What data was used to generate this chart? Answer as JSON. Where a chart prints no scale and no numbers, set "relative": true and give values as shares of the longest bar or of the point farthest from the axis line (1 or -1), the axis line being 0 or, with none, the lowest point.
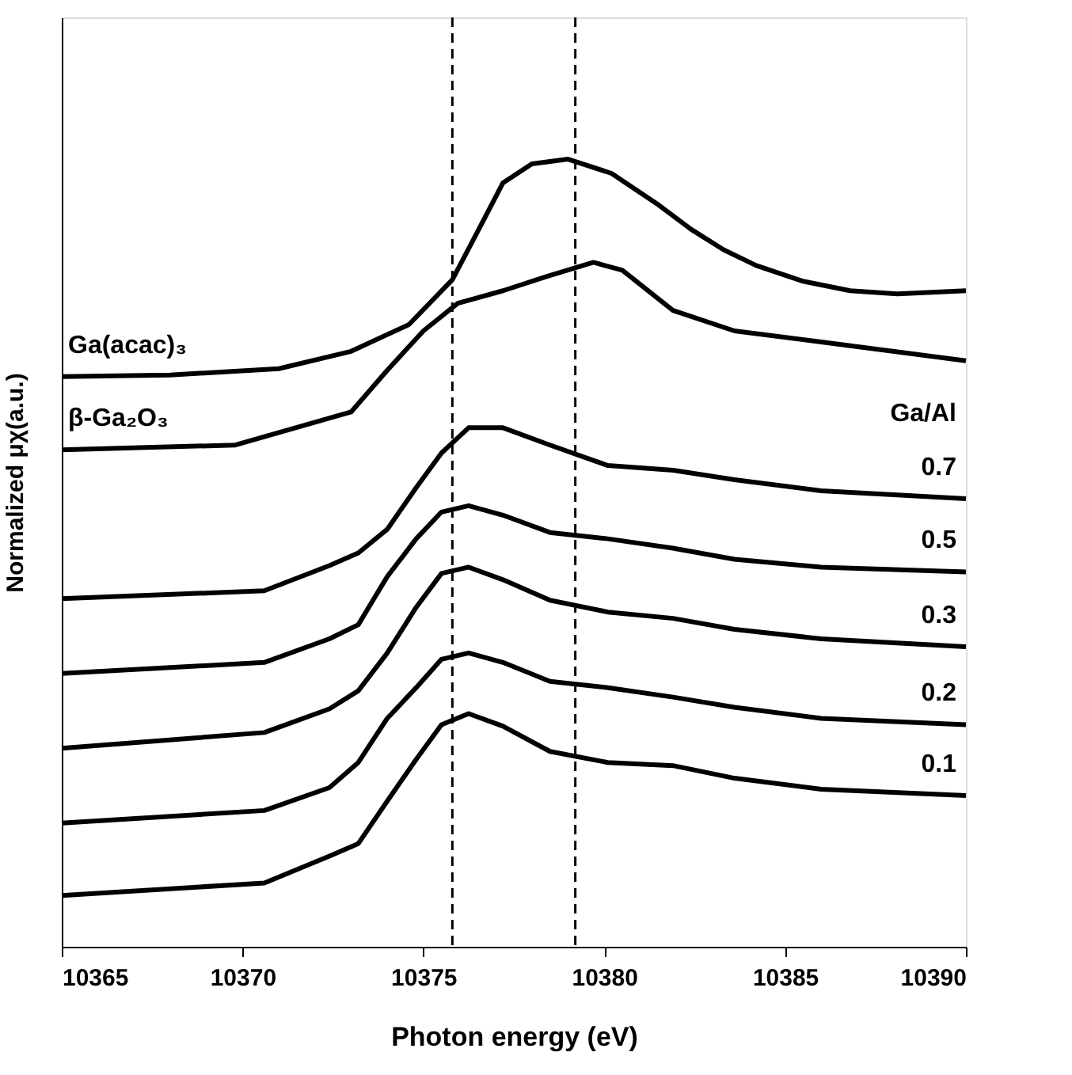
{
  "chart_data": {
    "type": "line",
    "relative": true,
    "xlabel": "Photon energy (eV)",
    "ylabel": "Normalized  μχ(a.u.)",
    "xlim": [
      10365,
      10390
    ],
    "xticks": [
      10365,
      10370,
      10375,
      10380,
      10385,
      10390
    ],
    "grid": false,
    "legend": false,
    "marker": "none",
    "line_style": "solid",
    "tick_labels": "x",
    "annotations": [
      "Ga/Al"
    ],
    "ref_lines": [
      {
        "axis": "x",
        "value": 10375.8,
        "color": "#000000",
        "line_style": "dashed"
      },
      {
        "axis": "x",
        "value": 10379.2,
        "color": "#000000",
        "line_style": "dashed"
      }
    ],
    "series": [
      {
        "name": "Ga(acac)₃",
        "color": "#000000",
        "x": [
          10365,
          10368,
          10371,
          10373,
          10374.6,
          10375.8,
          10376.6,
          10377.2,
          10378,
          10379,
          10380.2,
          10381.5,
          10382.4,
          10383.3,
          10384.2,
          10385.5,
          10386.8,
          10388.1,
          10390
        ],
        "values": [
          0.724,
          0.726,
          0.734,
          0.756,
          0.79,
          0.847,
          0.917,
          0.97,
          0.994,
          1.0,
          0.982,
          0.942,
          0.911,
          0.885,
          0.865,
          0.845,
          0.833,
          0.829,
          0.833
        ]
      },
      {
        "name": "β-Ga₂O₃",
        "color": "#000000",
        "x": [
          10365,
          10369.8,
          10373,
          10374,
          10375,
          10375.95,
          10377.2,
          10378.4,
          10379.7,
          10380.5,
          10381.9,
          10383.6,
          10386,
          10390
        ],
        "values": [
          0.631,
          0.637,
          0.679,
          0.732,
          0.782,
          0.817,
          0.833,
          0.851,
          0.869,
          0.859,
          0.808,
          0.782,
          0.768,
          0.744
        ]
      },
      {
        "name": "0.7",
        "color": "#000000",
        "x": [
          10365,
          10370.6,
          10372.4,
          10373.2,
          10374,
          10374.8,
          10375.5,
          10376.25,
          10377.2,
          10378.5,
          10380.1,
          10381.9,
          10383.6,
          10386,
          10390
        ],
        "values": [
          0.442,
          0.452,
          0.484,
          0.5,
          0.53,
          0.583,
          0.627,
          0.659,
          0.659,
          0.637,
          0.611,
          0.605,
          0.593,
          0.579,
          0.569
        ]
      },
      {
        "name": "0.5",
        "color": "#000000",
        "x": [
          10365,
          10370.6,
          10372.4,
          10373.2,
          10374,
          10374.8,
          10375.5,
          10376.25,
          10377.2,
          10378.5,
          10380.1,
          10381.9,
          10383.6,
          10386,
          10390
        ],
        "values": [
          0.347,
          0.361,
          0.391,
          0.409,
          0.47,
          0.518,
          0.552,
          0.56,
          0.548,
          0.526,
          0.518,
          0.506,
          0.492,
          0.482,
          0.476
        ]
      },
      {
        "name": "0.3",
        "color": "#000000",
        "x": [
          10365,
          10370.6,
          10372.4,
          10373.2,
          10374,
          10374.8,
          10375.5,
          10376.25,
          10377.2,
          10378.5,
          10380.1,
          10381.9,
          10383.6,
          10386,
          10390
        ],
        "values": [
          0.252,
          0.272,
          0.302,
          0.325,
          0.373,
          0.431,
          0.474,
          0.482,
          0.466,
          0.44,
          0.425,
          0.417,
          0.403,
          0.391,
          0.381
        ]
      },
      {
        "name": "0.2",
        "color": "#000000",
        "x": [
          10365,
          10370.6,
          10372.4,
          10373.2,
          10374,
          10374.8,
          10375.5,
          10376.25,
          10377.2,
          10378.5,
          10380.1,
          10381.9,
          10383.6,
          10386,
          10390
        ],
        "values": [
          0.157,
          0.173,
          0.202,
          0.234,
          0.29,
          0.329,
          0.365,
          0.373,
          0.361,
          0.337,
          0.329,
          0.317,
          0.304,
          0.29,
          0.282
        ]
      },
      {
        "name": "0.1",
        "color": "#000000",
        "x": [
          10365,
          10370.6,
          10372.4,
          10373.2,
          10374,
          10374.8,
          10375.5,
          10376.25,
          10377.2,
          10378.5,
          10380.1,
          10381.9,
          10383.6,
          10386,
          10390
        ],
        "values": [
          0.065,
          0.081,
          0.115,
          0.131,
          0.185,
          0.238,
          0.282,
          0.296,
          0.28,
          0.248,
          0.234,
          0.23,
          0.214,
          0.2,
          0.192
        ]
      }
    ]
  }
}
